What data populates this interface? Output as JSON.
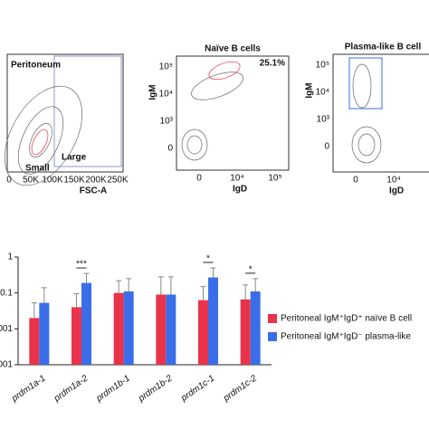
{
  "panels": [
    {
      "labels": [
        "Peritoneum",
        "Small",
        "Large"
      ],
      "x_label": "FSC-A",
      "xticks": [
        "0",
        "50K",
        "100K",
        "150K",
        "200K",
        "250K"
      ]
    },
    {
      "title": "Naïve B cells",
      "percent": "25.1%",
      "y_label": "IgM",
      "x_label": "IgD",
      "yticks": [
        "10⁵",
        "10⁴",
        "10³",
        "0"
      ],
      "xticks": [
        "0",
        "10⁴",
        "10⁵"
      ]
    },
    {
      "title": "Plasma-like B cell",
      "y_label": "IgM",
      "x_label": "IgD",
      "yticks": [
        "10⁵",
        "10⁴",
        "10³",
        "0"
      ],
      "xticks": [
        "0",
        "10⁴"
      ]
    }
  ],
  "chart_data": {
    "type": "bar",
    "log_scale": true,
    "categories": [
      "prdm1a-1",
      "prdm1a-2",
      "prdm1b-1",
      "prdm1b-2",
      "prdm1c-1",
      "prdm1c-2"
    ],
    "series": [
      {
        "name": "Peritoneal IgM⁺IgD⁺ naïve B cell",
        "color": "#e8334a",
        "values": [
          0.02,
          0.04,
          0.1,
          0.09,
          0.063,
          0.066
        ],
        "errors": [
          0.033,
          0.055,
          0.12,
          0.19,
          0.087,
          0.1
        ]
      },
      {
        "name": "Peritoneal IgM⁺IgD⁻ plasma-like",
        "color": "#3a6ee8",
        "values": [
          0.053,
          0.19,
          0.11,
          0.09,
          0.27,
          0.11
        ],
        "errors": [
          0.087,
          0.16,
          0.14,
          0.19,
          0.23,
          0.14
        ]
      }
    ],
    "ylim": [
      0.001,
      1
    ],
    "yticks": [
      1,
      {
        "value": 0.1,
        "label": "0.1"
      },
      {
        "value": 0.01,
        "label": "001"
      },
      {
        "value": 0.001,
        "label": "001"
      }
    ],
    "annotations": [
      {
        "category": 1,
        "text": "***"
      },
      {
        "category": 4,
        "text": "*"
      },
      {
        "category": 5,
        "text": "*"
      }
    ]
  }
}
